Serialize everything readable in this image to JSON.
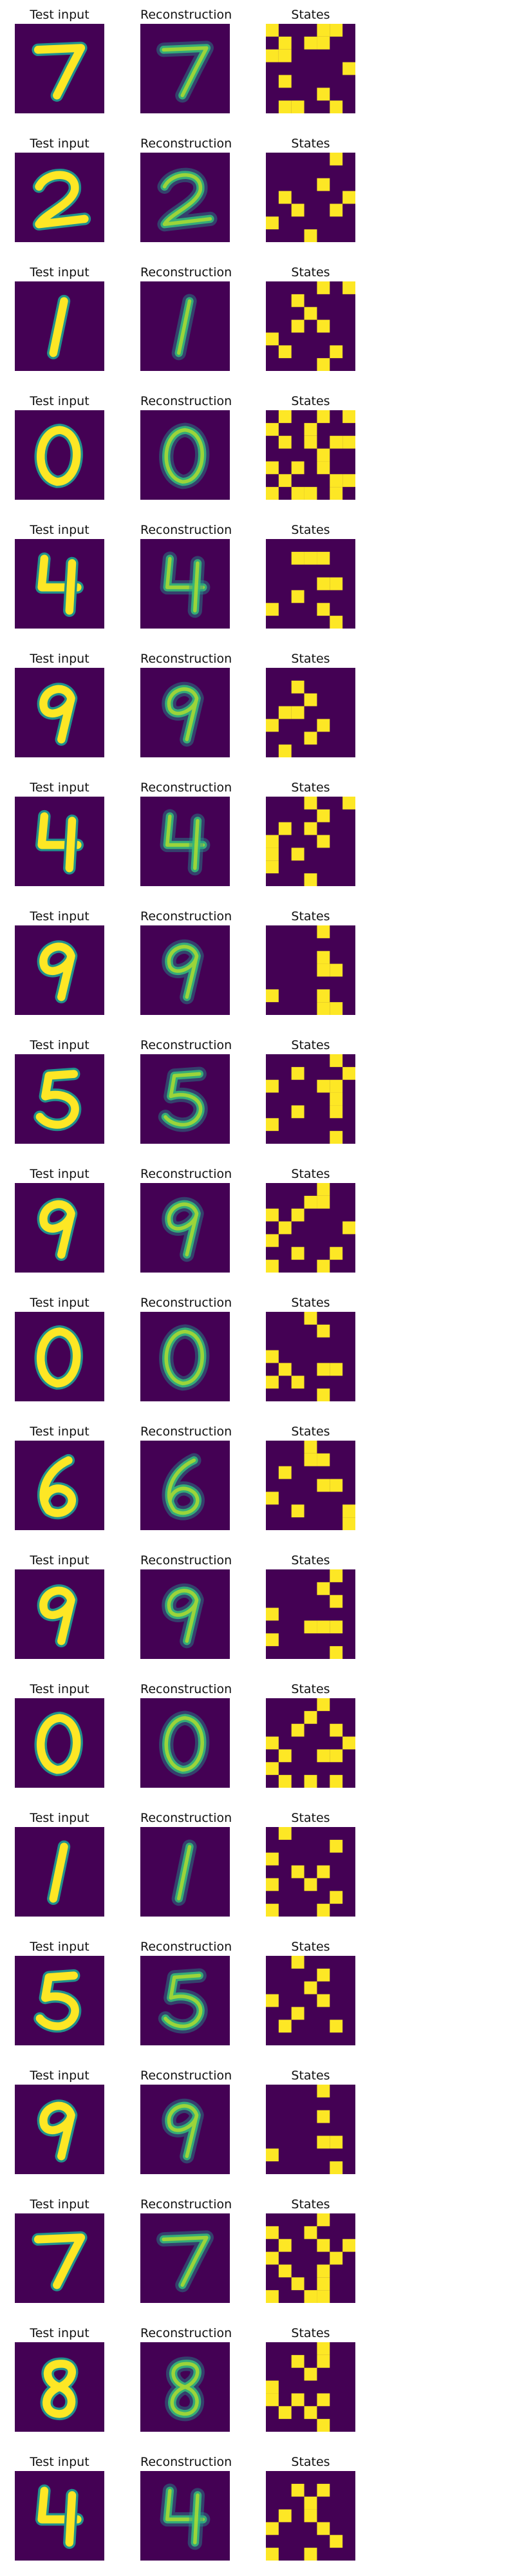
{
  "figure": {
    "column_titles": [
      "Test input",
      "Reconstruction",
      "States"
    ],
    "colors": {
      "background": "#440154",
      "mid": "#21918c",
      "high": "#35b779",
      "on": "#fde725"
    },
    "rows": [
      {
        "digit": "7",
        "states": [
          "1000110",
          "0101100",
          "1100000",
          "0000001",
          "0100000",
          "0000100",
          "0110010"
        ]
      },
      {
        "digit": "2",
        "states": [
          "0000010",
          "0000000",
          "0000100",
          "0100001",
          "0010010",
          "1000000",
          "0001000"
        ]
      },
      {
        "digit": "1",
        "states": [
          "0000101",
          "0010000",
          "0001000",
          "0010100",
          "1000000",
          "0100010",
          "0000100"
        ]
      },
      {
        "digit": "0",
        "states": [
          "0100101",
          "1001000",
          "0101011",
          "0000100",
          "1010100",
          "0100011",
          "1011010"
        ]
      },
      {
        "digit": "4",
        "states": [
          "0000000",
          "0011100",
          "0000000",
          "0000110",
          "0010000",
          "1000100",
          "0000010"
        ]
      },
      {
        "digit": "9",
        "states": [
          "0000000",
          "0010000",
          "0001000",
          "0110000",
          "1000100",
          "0001000",
          "0100000"
        ]
      },
      {
        "digit": "4",
        "states": [
          "0001001",
          "0000100",
          "0101000",
          "1000100",
          "1010000",
          "1000000",
          "0001000"
        ]
      },
      {
        "digit": "9",
        "states": [
          "0000100",
          "0000000",
          "0000100",
          "0000110",
          "0000000",
          "1000100",
          "0000110"
        ]
      },
      {
        "digit": "5",
        "states": [
          "0000010",
          "0010001",
          "1000110",
          "0000010",
          "0010010",
          "1000000",
          "0000010"
        ]
      },
      {
        "digit": "9",
        "states": [
          "0000100",
          "0001100",
          "1010000",
          "0100001",
          "1000000",
          "0010010",
          "1000100"
        ]
      },
      {
        "digit": "0",
        "states": [
          "0001000",
          "0000100",
          "0000000",
          "1000000",
          "0100110",
          "1010000",
          "0000100"
        ]
      },
      {
        "digit": "6",
        "states": [
          "0001000",
          "0001100",
          "0100000",
          "0000110",
          "1000000",
          "0010001",
          "0000001"
        ]
      },
      {
        "digit": "9",
        "states": [
          "0000010",
          "0000100",
          "0000010",
          "1000000",
          "0001110",
          "1000000",
          "0000010"
        ]
      },
      {
        "digit": "0",
        "states": [
          "0000100",
          "0001000",
          "0010010",
          "1000001",
          "0100110",
          "1000000",
          "0101010"
        ]
      },
      {
        "digit": "1",
        "states": [
          "0100000",
          "0000010",
          "1000000",
          "0010100",
          "1001000",
          "0000010",
          "1000100"
        ]
      },
      {
        "digit": "5",
        "states": [
          "0010000",
          "0000100",
          "0001000",
          "1000100",
          "0010000",
          "0100010",
          "0000000"
        ]
      },
      {
        "digit": "9",
        "states": [
          "0000100",
          "0000000",
          "0000100",
          "0000000",
          "0000110",
          "1000000",
          "0000010"
        ]
      },
      {
        "digit": "7",
        "states": [
          "0000100",
          "1001000",
          "0100101",
          "1000010",
          "0100100",
          "0010100",
          "1001100"
        ]
      },
      {
        "digit": "8",
        "states": [
          "0000100",
          "0010100",
          "0001000",
          "1000000",
          "1010100",
          "0101000",
          "0000100"
        ]
      },
      {
        "digit": "4",
        "states": [
          "0000000",
          "0010100",
          "0001000",
          "0101000",
          "1000100",
          "0000010",
          "1001000"
        ]
      }
    ]
  }
}
